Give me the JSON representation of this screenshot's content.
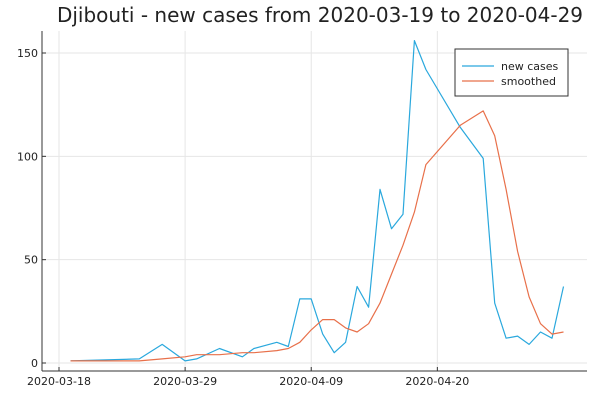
{
  "chart_data": {
    "type": "line",
    "title": "Djibouti - new cases from 2020-03-19 to 2020-04-29",
    "xlabel": "",
    "ylabel": "",
    "x_range": [
      "2020-03-18",
      "2020-04-30"
    ],
    "ylim": [
      -2,
      160
    ],
    "x_tick_labels": [
      "2020-03-18",
      "2020-03-29",
      "2020-04-09",
      "2020-04-20"
    ],
    "y_tick_labels": [
      "0",
      "50",
      "100",
      "150"
    ],
    "y_tick_values": [
      0,
      50,
      100,
      150
    ],
    "grid": true,
    "legend_position": "top-right",
    "series": [
      {
        "name": "new cases",
        "color": "#2aa8dd",
        "points": [
          [
            "2020-03-19",
            1
          ],
          [
            "2020-03-25",
            2
          ],
          [
            "2020-03-27",
            9
          ],
          [
            "2020-03-29",
            1
          ],
          [
            "2020-03-30",
            2
          ],
          [
            "2020-04-01",
            7
          ],
          [
            "2020-04-03",
            3
          ],
          [
            "2020-04-04",
            7
          ],
          [
            "2020-04-06",
            10
          ],
          [
            "2020-04-07",
            8
          ],
          [
            "2020-04-08",
            31
          ],
          [
            "2020-04-09",
            31
          ],
          [
            "2020-04-10",
            14
          ],
          [
            "2020-04-11",
            5
          ],
          [
            "2020-04-12",
            10
          ],
          [
            "2020-04-13",
            37
          ],
          [
            "2020-04-14",
            27
          ],
          [
            "2020-04-15",
            84
          ],
          [
            "2020-04-16",
            65
          ],
          [
            "2020-04-17",
            72
          ],
          [
            "2020-04-18",
            156
          ],
          [
            "2020-04-19",
            142
          ],
          [
            "2020-04-22",
            114
          ],
          [
            "2020-04-24",
            99
          ],
          [
            "2020-04-25",
            29
          ],
          [
            "2020-04-26",
            12
          ],
          [
            "2020-04-27",
            13
          ],
          [
            "2020-04-28",
            9
          ],
          [
            "2020-04-29",
            15
          ],
          [
            "2020-04-30",
            12
          ],
          [
            "2020-05-01",
            37
          ]
        ]
      },
      {
        "name": "smoothed",
        "color": "#e8704a",
        "points": [
          [
            "2020-03-19",
            1
          ],
          [
            "2020-03-25",
            1
          ],
          [
            "2020-03-27",
            2
          ],
          [
            "2020-03-29",
            3
          ],
          [
            "2020-03-30",
            4
          ],
          [
            "2020-04-01",
            4
          ],
          [
            "2020-04-03",
            5
          ],
          [
            "2020-04-04",
            5
          ],
          [
            "2020-04-06",
            6
          ],
          [
            "2020-04-07",
            7
          ],
          [
            "2020-04-08",
            10
          ],
          [
            "2020-04-09",
            16
          ],
          [
            "2020-04-10",
            21
          ],
          [
            "2020-04-11",
            21
          ],
          [
            "2020-04-12",
            17
          ],
          [
            "2020-04-13",
            15
          ],
          [
            "2020-04-14",
            19
          ],
          [
            "2020-04-15",
            29
          ],
          [
            "2020-04-16",
            43
          ],
          [
            "2020-04-17",
            57
          ],
          [
            "2020-04-18",
            73
          ],
          [
            "2020-04-19",
            96
          ],
          [
            "2020-04-22",
            115
          ],
          [
            "2020-04-24",
            122
          ],
          [
            "2020-04-25",
            110
          ],
          [
            "2020-04-26",
            84
          ],
          [
            "2020-04-27",
            54
          ],
          [
            "2020-04-28",
            32
          ],
          [
            "2020-04-29",
            19
          ],
          [
            "2020-04-30",
            14
          ],
          [
            "2020-05-01",
            15
          ]
        ]
      }
    ]
  }
}
